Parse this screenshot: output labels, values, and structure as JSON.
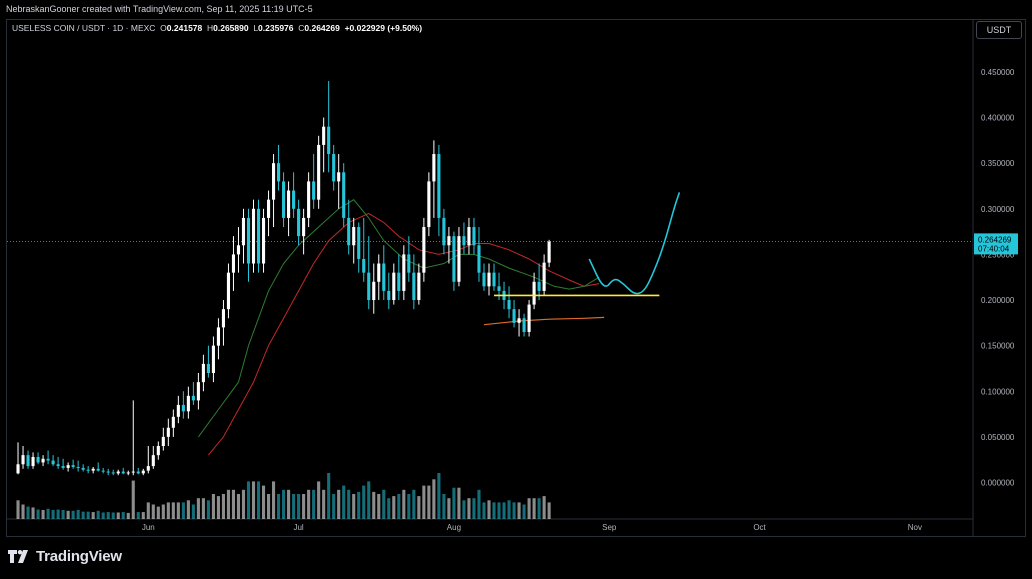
{
  "header": {
    "attribution": "NebraskanGooner created with TradingView.com, Sep 11, 2025 11:19 UTC-5"
  },
  "toolbar": {
    "currency": "USDT"
  },
  "legend": {
    "symbol": "USELESS COIN / USDT · 1D · MEXC",
    "open_label": "O",
    "open": "0.241578",
    "high_label": "H",
    "high": "0.265890",
    "low_label": "L",
    "low": "0.235976",
    "close_label": "C",
    "close": "0.264269",
    "change": "+0.022929 (+9.50%)"
  },
  "price_tag": {
    "price": "0.264269",
    "countdown": "07:40:04"
  },
  "footer": {
    "brand": "TradingView"
  },
  "colors": {
    "up": "#ffffff",
    "down": "#26c6da",
    "bg": "#000000",
    "grid": "#2a2e39",
    "ema_fast": "#2e7d32",
    "ema_slow": "#c62828",
    "support": "#ffeb3b",
    "ma_long": "#e06a2c",
    "projection": "#26c6da"
  },
  "chart_data": {
    "type": "candlestick",
    "y_ticks": [
      "0.450000",
      "0.400000",
      "0.350000",
      "0.300000",
      "0.250000",
      "0.200000",
      "0.150000",
      "0.100000",
      "0.050000",
      "0.000000"
    ],
    "y_tick_values": [
      0.45,
      0.4,
      0.35,
      0.3,
      0.25,
      0.2,
      0.15,
      0.1,
      0.05,
      0.0
    ],
    "ylim": [
      -0.04,
      0.485
    ],
    "x_ticks": [
      {
        "label": "Jun",
        "day": 26
      },
      {
        "label": "Jul",
        "day": 56
      },
      {
        "label": "Aug",
        "day": 87
      },
      {
        "label": "Sep",
        "day": 118
      },
      {
        "label": "Oct",
        "day": 148
      },
      {
        "label": "Nov",
        "day": 179
      }
    ],
    "x_range_days": [
      -2.2,
      190.6
    ],
    "current_price": 0.264269,
    "ohlc": [
      [
        0.01,
        0.044,
        0.009,
        0.02
      ],
      [
        0.02,
        0.04,
        0.015,
        0.03
      ],
      [
        0.03,
        0.035,
        0.015,
        0.018
      ],
      [
        0.018,
        0.033,
        0.015,
        0.028
      ],
      [
        0.028,
        0.033,
        0.02,
        0.022
      ],
      [
        0.022,
        0.03,
        0.018,
        0.026
      ],
      [
        0.026,
        0.035,
        0.02,
        0.024
      ],
      [
        0.024,
        0.03,
        0.018,
        0.02
      ],
      [
        0.02,
        0.028,
        0.015,
        0.018
      ],
      [
        0.018,
        0.026,
        0.014,
        0.016
      ],
      [
        0.016,
        0.022,
        0.012,
        0.019
      ],
      [
        0.019,
        0.025,
        0.015,
        0.017
      ],
      [
        0.017,
        0.024,
        0.012,
        0.016
      ],
      [
        0.016,
        0.02,
        0.012,
        0.014
      ],
      [
        0.014,
        0.018,
        0.01,
        0.013
      ],
      [
        0.013,
        0.017,
        0.01,
        0.015
      ],
      [
        0.015,
        0.022,
        0.012,
        0.013
      ],
      [
        0.013,
        0.016,
        0.01,
        0.012
      ],
      [
        0.012,
        0.015,
        0.008,
        0.011
      ],
      [
        0.011,
        0.014,
        0.008,
        0.01
      ],
      [
        0.01,
        0.014,
        0.008,
        0.012
      ],
      [
        0.012,
        0.016,
        0.009,
        0.01
      ],
      [
        0.01,
        0.013,
        0.008,
        0.011
      ],
      [
        0.011,
        0.09,
        0.008,
        0.012
      ],
      [
        0.012,
        0.016,
        0.009,
        0.01
      ],
      [
        0.01,
        0.015,
        0.008,
        0.013
      ],
      [
        0.013,
        0.04,
        0.01,
        0.018
      ],
      [
        0.018,
        0.04,
        0.015,
        0.03
      ],
      [
        0.03,
        0.045,
        0.025,
        0.04
      ],
      [
        0.04,
        0.06,
        0.035,
        0.05
      ],
      [
        0.05,
        0.07,
        0.04,
        0.06
      ],
      [
        0.06,
        0.08,
        0.05,
        0.072
      ],
      [
        0.072,
        0.095,
        0.065,
        0.085
      ],
      [
        0.085,
        0.1,
        0.07,
        0.078
      ],
      [
        0.078,
        0.105,
        0.07,
        0.095
      ],
      [
        0.095,
        0.11,
        0.085,
        0.09
      ],
      [
        0.09,
        0.12,
        0.08,
        0.11
      ],
      [
        0.11,
        0.14,
        0.1,
        0.13
      ],
      [
        0.13,
        0.15,
        0.115,
        0.12
      ],
      [
        0.12,
        0.16,
        0.11,
        0.15
      ],
      [
        0.15,
        0.18,
        0.135,
        0.17
      ],
      [
        0.17,
        0.2,
        0.15,
        0.19
      ],
      [
        0.19,
        0.24,
        0.18,
        0.23
      ],
      [
        0.23,
        0.27,
        0.21,
        0.25
      ],
      [
        0.25,
        0.28,
        0.23,
        0.26
      ],
      [
        0.26,
        0.3,
        0.24,
        0.29
      ],
      [
        0.29,
        0.3,
        0.22,
        0.24
      ],
      [
        0.24,
        0.31,
        0.23,
        0.3
      ],
      [
        0.3,
        0.31,
        0.23,
        0.24
      ],
      [
        0.24,
        0.3,
        0.23,
        0.29
      ],
      [
        0.29,
        0.32,
        0.27,
        0.31
      ],
      [
        0.31,
        0.36,
        0.28,
        0.35
      ],
      [
        0.35,
        0.37,
        0.32,
        0.33
      ],
      [
        0.33,
        0.34,
        0.28,
        0.29
      ],
      [
        0.29,
        0.33,
        0.27,
        0.32
      ],
      [
        0.32,
        0.34,
        0.29,
        0.3
      ],
      [
        0.3,
        0.31,
        0.26,
        0.27
      ],
      [
        0.27,
        0.3,
        0.25,
        0.29
      ],
      [
        0.29,
        0.34,
        0.28,
        0.33
      ],
      [
        0.33,
        0.36,
        0.3,
        0.31
      ],
      [
        0.31,
        0.38,
        0.3,
        0.37
      ],
      [
        0.37,
        0.4,
        0.34,
        0.39
      ],
      [
        0.39,
        0.44,
        0.34,
        0.36
      ],
      [
        0.36,
        0.37,
        0.32,
        0.33
      ],
      [
        0.33,
        0.36,
        0.3,
        0.34
      ],
      [
        0.34,
        0.35,
        0.28,
        0.29
      ],
      [
        0.29,
        0.31,
        0.25,
        0.26
      ],
      [
        0.26,
        0.29,
        0.24,
        0.28
      ],
      [
        0.28,
        0.285,
        0.23,
        0.245
      ],
      [
        0.245,
        0.29,
        0.22,
        0.23
      ],
      [
        0.23,
        0.27,
        0.19,
        0.2
      ],
      [
        0.2,
        0.24,
        0.185,
        0.22
      ],
      [
        0.22,
        0.25,
        0.2,
        0.24
      ],
      [
        0.24,
        0.26,
        0.2,
        0.21
      ],
      [
        0.21,
        0.23,
        0.19,
        0.2
      ],
      [
        0.2,
        0.24,
        0.195,
        0.23
      ],
      [
        0.23,
        0.25,
        0.2,
        0.21
      ],
      [
        0.21,
        0.26,
        0.2,
        0.25
      ],
      [
        0.25,
        0.27,
        0.22,
        0.23
      ],
      [
        0.23,
        0.25,
        0.19,
        0.2
      ],
      [
        0.2,
        0.24,
        0.195,
        0.23
      ],
      [
        0.23,
        0.29,
        0.22,
        0.28
      ],
      [
        0.28,
        0.34,
        0.27,
        0.33
      ],
      [
        0.33,
        0.375,
        0.29,
        0.36
      ],
      [
        0.36,
        0.37,
        0.27,
        0.29
      ],
      [
        0.29,
        0.3,
        0.25,
        0.26
      ],
      [
        0.26,
        0.28,
        0.24,
        0.27
      ],
      [
        0.27,
        0.275,
        0.21,
        0.22
      ],
      [
        0.22,
        0.28,
        0.215,
        0.27
      ],
      [
        0.27,
        0.285,
        0.25,
        0.26
      ],
      [
        0.26,
        0.29,
        0.25,
        0.28
      ],
      [
        0.28,
        0.29,
        0.25,
        0.26
      ],
      [
        0.26,
        0.28,
        0.22,
        0.23
      ],
      [
        0.23,
        0.24,
        0.21,
        0.215
      ],
      [
        0.215,
        0.24,
        0.205,
        0.23
      ],
      [
        0.23,
        0.24,
        0.21,
        0.215
      ],
      [
        0.215,
        0.23,
        0.2,
        0.21
      ],
      [
        0.21,
        0.22,
        0.19,
        0.2
      ],
      [
        0.2,
        0.215,
        0.18,
        0.19
      ],
      [
        0.19,
        0.2,
        0.17,
        0.175
      ],
      [
        0.175,
        0.19,
        0.16,
        0.18
      ],
      [
        0.18,
        0.185,
        0.16,
        0.165
      ],
      [
        0.165,
        0.2,
        0.16,
        0.195
      ],
      [
        0.195,
        0.23,
        0.19,
        0.22
      ],
      [
        0.22,
        0.24,
        0.2,
        0.21
      ],
      [
        0.21,
        0.25,
        0.205,
        0.241
      ],
      [
        0.241,
        0.266,
        0.236,
        0.264
      ]
    ],
    "ema_fast": [
      [
        36,
        0.05
      ],
      [
        40,
        0.08
      ],
      [
        44,
        0.11
      ],
      [
        46,
        0.15
      ],
      [
        48,
        0.18
      ],
      [
        50,
        0.21
      ],
      [
        53,
        0.24
      ],
      [
        56,
        0.26
      ],
      [
        60,
        0.28
      ],
      [
        64,
        0.3
      ],
      [
        67,
        0.31
      ],
      [
        70,
        0.29
      ],
      [
        73,
        0.265
      ],
      [
        77,
        0.245
      ],
      [
        81,
        0.235
      ],
      [
        85,
        0.24
      ],
      [
        88,
        0.25
      ],
      [
        91,
        0.25
      ],
      [
        94,
        0.245
      ],
      [
        98,
        0.235
      ],
      [
        103,
        0.225
      ],
      [
        107,
        0.215
      ],
      [
        110,
        0.212
      ],
      [
        113,
        0.215
      ],
      [
        116,
        0.225
      ]
    ],
    "ema_slow": [
      [
        38,
        0.03
      ],
      [
        41,
        0.05
      ],
      [
        44,
        0.08
      ],
      [
        47,
        0.11
      ],
      [
        50,
        0.15
      ],
      [
        53,
        0.18
      ],
      [
        56,
        0.21
      ],
      [
        59,
        0.24
      ],
      [
        62,
        0.265
      ],
      [
        66,
        0.285
      ],
      [
        70,
        0.295
      ],
      [
        73,
        0.285
      ],
      [
        76,
        0.27
      ],
      [
        80,
        0.255
      ],
      [
        84,
        0.25
      ],
      [
        88,
        0.255
      ],
      [
        91,
        0.262
      ],
      [
        94,
        0.262
      ],
      [
        98,
        0.255
      ],
      [
        102,
        0.245
      ],
      [
        106,
        0.232
      ],
      [
        110,
        0.222
      ],
      [
        113,
        0.215
      ],
      [
        116,
        0.218
      ]
    ],
    "support_level": {
      "value": 0.205,
      "from_day": 95,
      "to_day": 128
    },
    "ma_long": [
      [
        93,
        0.173
      ],
      [
        100,
        0.177
      ],
      [
        106,
        0.179
      ],
      [
        113,
        0.18
      ],
      [
        117,
        0.181
      ]
    ],
    "projection": [
      [
        114,
        0.245
      ],
      [
        117,
        0.21
      ],
      [
        119,
        0.225
      ],
      [
        121,
        0.217
      ],
      [
        123,
        0.206
      ],
      [
        125,
        0.209
      ],
      [
        127,
        0.232
      ],
      [
        129,
        0.262
      ],
      [
        131,
        0.302
      ],
      [
        132,
        0.318
      ]
    ]
  }
}
